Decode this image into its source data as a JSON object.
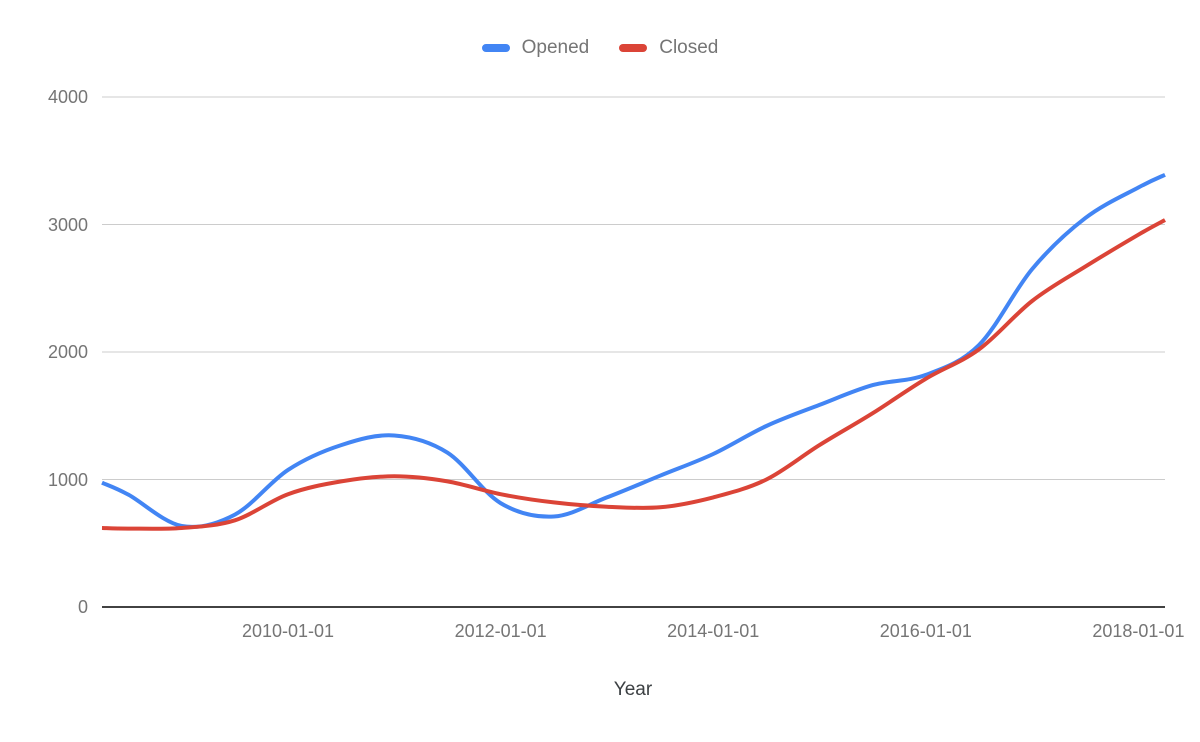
{
  "colors": {
    "opened": "#4285F4",
    "closed": "#DB4437",
    "grid": "#CCCCCC",
    "axis_line": "#424242",
    "tick_label": "#757575",
    "axis_title": "#3C4043",
    "background": "#FFFFFF"
  },
  "chart_data": {
    "type": "line",
    "curve": "smooth",
    "title": "",
    "xlabel": "Year",
    "ylabel": "",
    "grid": "horizontal",
    "legend_position": "top",
    "x_range": [
      2008.25,
      2018.25
    ],
    "y_range": [
      0,
      4000
    ],
    "x_ticks": [
      {
        "year": 2010,
        "label": "2010-01-01"
      },
      {
        "year": 2012,
        "label": "2012-01-01"
      },
      {
        "year": 2014,
        "label": "2014-01-01"
      },
      {
        "year": 2016,
        "label": "2016-01-01"
      },
      {
        "year": 2018,
        "label": "2018-01-01"
      }
    ],
    "y_ticks": [
      0,
      1000,
      2000,
      3000,
      4000
    ],
    "x": [
      2008.25,
      2008.5,
      2009,
      2009.5,
      2010,
      2010.5,
      2011,
      2011.5,
      2012,
      2012.5,
      2013,
      2013.5,
      2014,
      2014.5,
      2015,
      2015.5,
      2016,
      2016.5,
      2017,
      2017.5,
      2018,
      2018.25
    ],
    "series": [
      {
        "name": "Opened",
        "color": "#4285F4",
        "values": [
          975,
          880,
          635,
          725,
          1075,
          1270,
          1345,
          1210,
          815,
          710,
          860,
          1030,
          1200,
          1420,
          1585,
          1740,
          1820,
          2055,
          2650,
          3050,
          3290,
          3390
        ]
      },
      {
        "name": "Closed",
        "color": "#DB4437",
        "values": [
          620,
          615,
          620,
          680,
          885,
          985,
          1025,
          985,
          885,
          820,
          787,
          782,
          860,
          1000,
          1270,
          1520,
          1790,
          2020,
          2400,
          2670,
          2920,
          3035
        ]
      }
    ]
  }
}
